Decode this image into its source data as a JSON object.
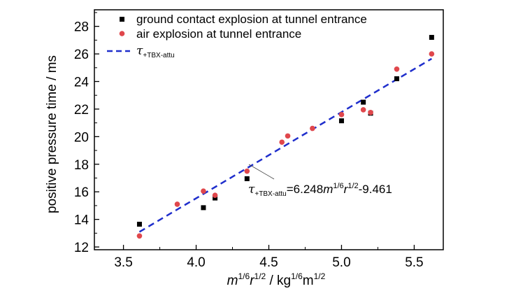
{
  "chart_data": {
    "type": "scatter",
    "xlabel": {
      "m_base": "m",
      "m_exp": "1/6",
      "r_base": "r",
      "r_exp": "1/2",
      "unit_kg": " / kg",
      "kg_exp": "1/6",
      "unit_m": "m",
      "m2_exp": "1/2"
    },
    "ylabel": "positive pressure time / ms",
    "xlim": [
      3.3,
      5.7
    ],
    "ylim": [
      11.8,
      29.2
    ],
    "xticks": [
      "3.5",
      "4.0",
      "4.5",
      "5.0",
      "5.5"
    ],
    "yticks": [
      "12",
      "14",
      "16",
      "18",
      "20",
      "22",
      "24",
      "26",
      "28"
    ],
    "series": [
      {
        "name": "ground contact explosion at tunnel entrance",
        "marker": "square",
        "color": "#000000",
        "x": [
          3.61,
          4.05,
          4.13,
          4.35,
          5.0,
          5.15,
          5.2,
          5.38,
          5.62
        ],
        "y": [
          13.65,
          14.85,
          15.55,
          16.95,
          21.15,
          22.5,
          21.7,
          24.2,
          27.2
        ]
      },
      {
        "name": "air explosion at tunnel entrance",
        "marker": "circle",
        "color": "#e0474c",
        "x": [
          3.61,
          3.87,
          4.05,
          4.13,
          4.35,
          4.59,
          4.63,
          4.8,
          5.0,
          5.15,
          5.2,
          5.38,
          5.62
        ],
        "y": [
          12.8,
          15.1,
          16.05,
          15.75,
          17.5,
          19.6,
          20.05,
          20.6,
          21.6,
          21.95,
          21.75,
          24.9,
          26.0
        ]
      }
    ],
    "fit": {
      "name_base": "τ",
      "name_sub": "+TBX-attu",
      "equation_rest": "=6.248m1/6r1/2-9.461",
      "color": "#1f2ecc",
      "style": "dashed",
      "slope": 6.248,
      "intercept": -9.461,
      "x_range": [
        3.61,
        5.62
      ]
    },
    "annotation": {
      "tau": "τ",
      "sub": "+TBX-attu",
      "eq_prefix": "=6.248",
      "m": "m",
      "m_exp": "1/6",
      "r": "r",
      "r_exp": "1/2",
      "tail": "-9.461"
    },
    "legend_position": "top-left"
  }
}
